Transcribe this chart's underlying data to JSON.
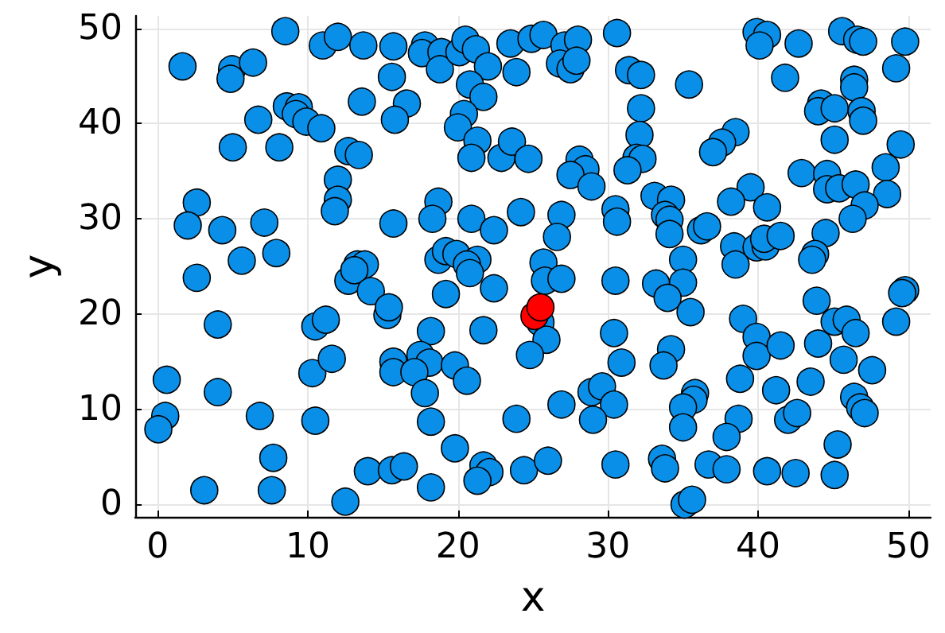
{
  "chart_data": {
    "type": "scatter",
    "xlabel": "x",
    "ylabel": "y",
    "xlim": [
      -1.5,
      51.5
    ],
    "ylim": [
      -1.3,
      51.3
    ],
    "xticks": [
      0,
      10,
      20,
      30,
      40,
      50
    ],
    "yticks": [
      0,
      10,
      20,
      30,
      40,
      50
    ],
    "grid": true,
    "marker": "circle",
    "series": [
      {
        "color": "#0a8fe8",
        "x": [
          8.5,
          11.0,
          12.0,
          13.7,
          15.7,
          1.65,
          4.95,
          4.85,
          6.35,
          15.6,
          13.6,
          16.6,
          15.8,
          6.7,
          8.6,
          9.4,
          9.2,
          9.9,
          10.9,
          5.0,
          8.1,
          12.7,
          13.4,
          12.0,
          12.0,
          11.8,
          2.6,
          2.0,
          4.3,
          7.1,
          15.7,
          7.9,
          5.6,
          13.3,
          13.8,
          17.8,
          17.6,
          18.9,
          18.8,
          20.1,
          20.5,
          21.2,
          22.0,
          23.5,
          24.9,
          25.7,
          23.9,
          27.1,
          28.0,
          26.8,
          27.5,
          27.9,
          30.6,
          31.4,
          32.2,
          20.8,
          21.7,
          20.4,
          20.0,
          21.3,
          20.9,
          22.9,
          23.6,
          24.7,
          28.1,
          28.5,
          27.5,
          28.9,
          32.2,
          32.1,
          31.9,
          32.3,
          31.3,
          33.1,
          18.7,
          18.3,
          20.9,
          22.4,
          24.2,
          26.9,
          26.6,
          30.5,
          30.6,
          18.7,
          19.2,
          19.9,
          21.3,
          20.6,
          25.7,
          39.9,
          40.6,
          40.1,
          42.7,
          45.6,
          46.6,
          47.0,
          49.8,
          49.2,
          35.4,
          41.8,
          46.4,
          46.4,
          44.2,
          44.0,
          45.1,
          46.9,
          47.0,
          38.5,
          37.6,
          37.0,
          45.1,
          49.5,
          48.5,
          48.6,
          42.9,
          44.6,
          44.6,
          45.4,
          46.5,
          47.1,
          46.3,
          39.5,
          38.2,
          40.6,
          34.2,
          33.8,
          34.1,
          34.1,
          36.2,
          36.6,
          38.4,
          38.5,
          39.9,
          40.5,
          40.4,
          41.5,
          44.5,
          43.8,
          43.6,
          35.0,
          2.6,
          12.7,
          13.1,
          14.2,
          15.3,
          15.4,
          4.0,
          10.5,
          11.2,
          0.6,
          4.0,
          0.5,
          0.04,
          6.8,
          10.3,
          11.6,
          10.5,
          15.7,
          15.7,
          7.7,
          3.1,
          7.6,
          12.5,
          14.0,
          15.6,
          16.4,
          20.8,
          25.8,
          26.9,
          30.5,
          33.2,
          19.2,
          22.4,
          25.5,
          25.9,
          24.8,
          18.2,
          21.7,
          30.4,
          30.9,
          17.5,
          18.1,
          17.1,
          17.8,
          19.8,
          20.6,
          18.2,
          19.8,
          23.9,
          26.9,
          28.9,
          29.6,
          30.4,
          29.0,
          18.2,
          21.7,
          22.1,
          21.3,
          24.4,
          26.0,
          30.5,
          33.6,
          33.8,
          35.0,
          33.97,
          35.5,
          49.8,
          49.6,
          43.9,
          39.0,
          39.9,
          39.9,
          41.5,
          45.1,
          45.9,
          46.5,
          49.2,
          44.0,
          45.7,
          47.6,
          34.2,
          33.7,
          38.8,
          41.2,
          43.5,
          35.8,
          35.7,
          35.0,
          35.0,
          38.7,
          37.9,
          42.0,
          42.6,
          46.4,
          46.8,
          47.1,
          45.3,
          36.7,
          37.9,
          40.6,
          42.5,
          45.1,
          35.1,
          35.6
        ],
        "values": [
          49.7,
          48.2,
          49.1,
          48.2,
          48.1,
          46.0,
          45.7,
          44.7,
          46.4,
          44.9,
          42.3,
          42.1,
          40.4,
          40.4,
          41.8,
          41.7,
          41.0,
          40.2,
          39.5,
          37.5,
          37.5,
          37.1,
          36.7,
          34.1,
          32.0,
          30.8,
          31.7,
          29.3,
          28.8,
          29.6,
          29.5,
          26.4,
          25.6,
          25.2,
          25.2,
          48.2,
          47.4,
          47.5,
          45.7,
          47.5,
          48.8,
          47.8,
          46.0,
          48.4,
          48.9,
          49.3,
          45.4,
          48.2,
          48.8,
          46.3,
          45.7,
          46.6,
          49.5,
          45.6,
          45.1,
          44.1,
          42.8,
          41.0,
          39.6,
          38.2,
          36.4,
          36.4,
          38.1,
          36.3,
          36.2,
          35.2,
          34.6,
          33.4,
          41.6,
          38.8,
          36.4,
          36.3,
          35.1,
          32.4,
          31.8,
          30.0,
          30.0,
          28.8,
          30.7,
          30.4,
          28.1,
          31.0,
          29.7,
          25.7,
          26.6,
          26.3,
          25.7,
          25.2,
          25.4,
          49.6,
          49.3,
          48.2,
          48.4,
          49.7,
          48.8,
          48.6,
          48.6,
          45.8,
          44.1,
          44.8,
          44.6,
          43.8,
          42.1,
          41.3,
          41.6,
          41.3,
          40.3,
          39.1,
          38.0,
          37.0,
          38.3,
          37.8,
          35.4,
          32.6,
          34.8,
          34.7,
          33.1,
          33.2,
          33.6,
          31.4,
          30.0,
          33.3,
          31.8,
          31.2,
          32.0,
          30.4,
          29.9,
          28.4,
          28.8,
          29.2,
          27.1,
          25.2,
          27.0,
          27.1,
          27.9,
          28.2,
          28.5,
          26.3,
          25.7,
          25.7,
          23.8,
          23.5,
          24.6,
          22.4,
          19.9,
          20.7,
          18.9,
          18.7,
          19.4,
          13.1,
          11.8,
          9.3,
          7.9,
          9.3,
          13.8,
          15.3,
          8.8,
          15.0,
          13.9,
          4.9,
          1.5,
          1.5,
          0.3,
          3.5,
          3.6,
          4.0,
          24.3,
          23.5,
          23.7,
          23.5,
          23.2,
          22.1,
          22.7,
          19.1,
          17.3,
          15.7,
          18.2,
          18.3,
          18.0,
          14.9,
          15.7,
          14.9,
          13.9,
          11.7,
          14.6,
          13.0,
          8.7,
          5.9,
          9.0,
          10.5,
          11.8,
          12.4,
          10.5,
          8.9,
          1.8,
          4.1,
          3.4,
          2.5,
          3.6,
          4.6,
          4.2,
          4.8,
          3.8,
          23.3,
          21.7,
          20.2,
          22.5,
          22.2,
          21.4,
          19.5,
          17.6,
          15.6,
          16.7,
          19.2,
          19.4,
          18.0,
          19.2,
          16.9,
          15.2,
          14.1,
          16.3,
          14.6,
          13.2,
          12.0,
          12.9,
          11.7,
          11.0,
          10.2,
          8.1,
          9.0,
          7.1,
          8.9,
          9.6,
          11.3,
          10.2,
          9.6,
          6.3,
          4.2,
          3.7,
          3.5,
          3.3,
          3.1,
          0.0,
          0.5
        ]
      },
      {
        "color": "#ff0000",
        "x": [
          25.1,
          25.5
        ],
        "values": [
          19.8,
          20.7
        ]
      }
    ]
  }
}
